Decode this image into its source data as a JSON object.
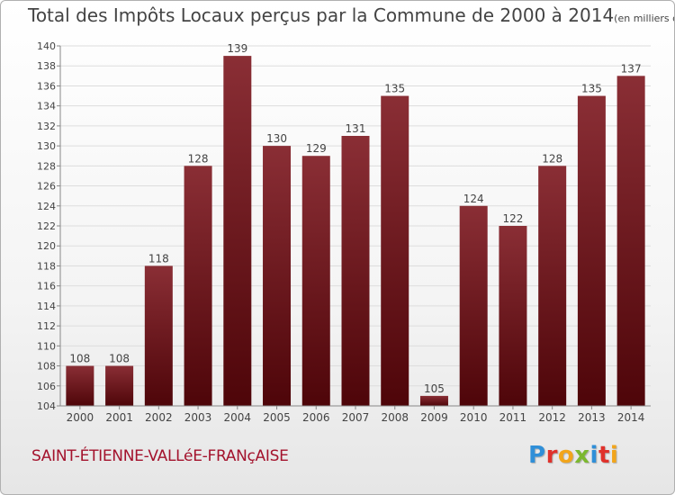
{
  "colors": {
    "bar_light": "#8a2e35",
    "bar_dark": "#4e0509",
    "grid": "#dddddd",
    "axis": "#888888",
    "text": "#444444",
    "commune": "#a3122c"
  },
  "header": {
    "title": "Total des Impôts Locaux perçus par la Commune de 2000 à 2014",
    "unit": "(en milliers d'€)"
  },
  "footer": {
    "commune": "SAINT-ÉTIENNE-VALLéE-FRANçAISE",
    "logo_letters": [
      {
        "ch": "P",
        "color": "#2f8fd8"
      },
      {
        "ch": "r",
        "color": "#e0312b"
      },
      {
        "ch": "o",
        "color": "#f2a51b"
      },
      {
        "ch": "x",
        "color": "#7cb82f"
      },
      {
        "ch": "i",
        "color": "#2f8fd8"
      },
      {
        "ch": "t",
        "color": "#e0312b"
      },
      {
        "ch": "i",
        "color": "#f2a51b"
      }
    ]
  },
  "chart_data": {
    "type": "bar",
    "title": "Total des Impôts Locaux perçus par la Commune de 2000 à 2014",
    "categories": [
      "2000",
      "2001",
      "2002",
      "2003",
      "2004",
      "2005",
      "2006",
      "2007",
      "2008",
      "2009",
      "2010",
      "2011",
      "2012",
      "2013",
      "2014"
    ],
    "values": [
      108,
      108,
      118,
      128,
      139,
      130,
      129,
      131,
      135,
      105,
      124,
      122,
      128,
      135,
      137
    ],
    "ylim": [
      104,
      140
    ],
    "yticks": [
      104,
      106,
      108,
      110,
      112,
      114,
      116,
      118,
      120,
      122,
      124,
      126,
      128,
      130,
      132,
      134,
      136,
      138,
      140
    ],
    "xlabel": "",
    "ylabel": "",
    "grid": true
  }
}
